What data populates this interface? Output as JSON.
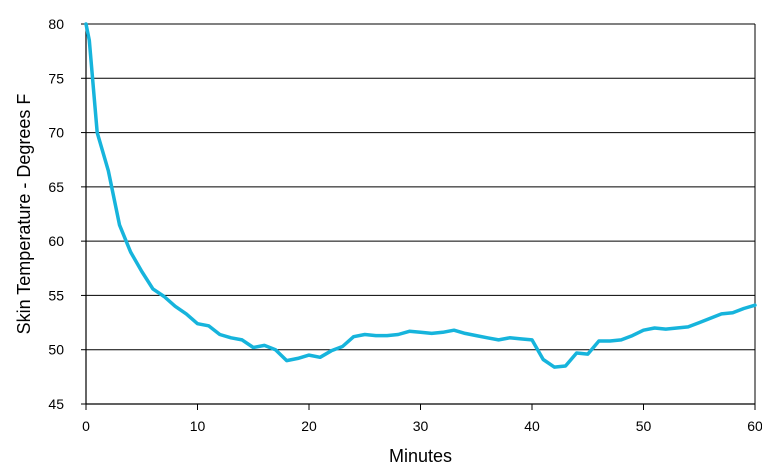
{
  "chart_data": {
    "type": "line",
    "title": "",
    "xlabel": "Minutes",
    "ylabel": "Skin Temperature - Degrees F",
    "xlim": [
      0,
      60
    ],
    "ylim": [
      45,
      80
    ],
    "xticks": [
      0,
      10,
      20,
      30,
      40,
      50,
      60
    ],
    "yticks": [
      45,
      50,
      55,
      60,
      65,
      70,
      75,
      80
    ],
    "grid": "horizontal",
    "legend": "none",
    "line_color": "#16b4dc",
    "series": [
      {
        "x": [
          0,
          0.3,
          1,
          2,
          3,
          4,
          5,
          6,
          7,
          8,
          9,
          10,
          11,
          12,
          13,
          14,
          15,
          16,
          17,
          18,
          19,
          20,
          21,
          22,
          23,
          24,
          25,
          26,
          27,
          28,
          29,
          30,
          31,
          32,
          33,
          34,
          35,
          36,
          37,
          38,
          39,
          40,
          41,
          42,
          43,
          44,
          45,
          46,
          47,
          48,
          49,
          50,
          51,
          52,
          53,
          54,
          55,
          56,
          57,
          58,
          59,
          60
        ],
        "y": [
          80,
          78.5,
          70,
          66.5,
          61.5,
          59,
          57.2,
          55.6,
          54.9,
          54,
          53.3,
          52.4,
          52.2,
          51.4,
          51.1,
          50.9,
          50.2,
          50.4,
          50.0,
          49.0,
          49.2,
          49.5,
          49.3,
          49.9,
          50.3,
          51.2,
          51.4,
          51.3,
          51.3,
          51.4,
          51.7,
          51.6,
          51.5,
          51.6,
          51.8,
          51.5,
          51.3,
          51.1,
          50.9,
          51.1,
          51.0,
          50.9,
          49.1,
          48.4,
          48.5,
          49.7,
          49.6,
          50.8,
          50.8,
          50.9,
          51.3,
          51.8,
          52.0,
          51.9,
          52.0,
          52.1,
          52.5,
          52.9,
          53.3,
          53.4,
          53.8,
          54.1
        ]
      }
    ]
  }
}
